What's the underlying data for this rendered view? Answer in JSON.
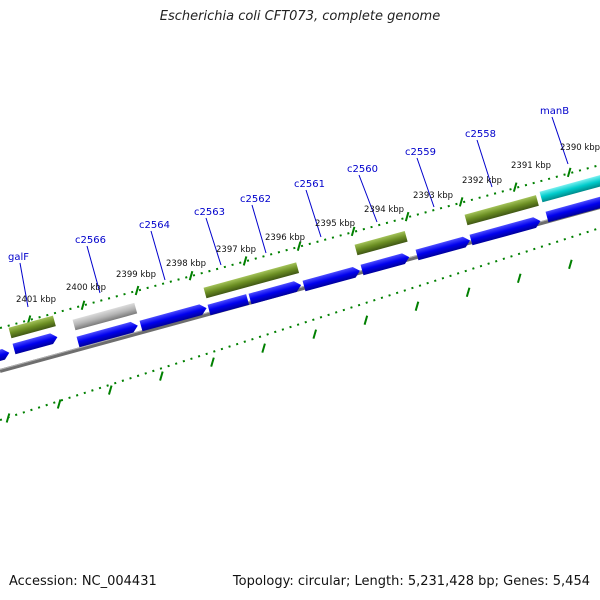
{
  "title": "Escherichia coli CFT073, complete genome",
  "accession_text": "Accession: NC_004431",
  "summary_text": "Topology: circular; Length: 5,231,428 bp; Genes: 5,454",
  "colors": {
    "cds_blue": "#0000ee",
    "gene_olive": "#6b8e23",
    "gene_gray": "#a9a9a9",
    "gene_cyan": "#00cccc",
    "backbone": "#808080",
    "tick_green": "#008000",
    "label_blue": "#0000cc"
  },
  "gene_labels": [
    {
      "text": "galF"
    },
    {
      "text": "c2566"
    },
    {
      "text": "c2564"
    },
    {
      "text": "c2563"
    },
    {
      "text": "c2562"
    },
    {
      "text": "c2561"
    },
    {
      "text": "c2560"
    },
    {
      "text": "c2559"
    },
    {
      "text": "c2558"
    },
    {
      "text": "manB"
    }
  ],
  "kbp_labels": [
    {
      "text": "2401 kbp"
    },
    {
      "text": "2400 kbp"
    },
    {
      "text": "2399 kbp"
    },
    {
      "text": "2398 kbp"
    },
    {
      "text": "2397 kbp"
    },
    {
      "text": "2396 kbp"
    },
    {
      "text": "2395 kbp"
    },
    {
      "text": "2394 kbp"
    },
    {
      "text": "2393 kbp"
    },
    {
      "text": "2392 kbp"
    },
    {
      "text": "2391 kbp"
    },
    {
      "text": "2390 kbp"
    }
  ]
}
